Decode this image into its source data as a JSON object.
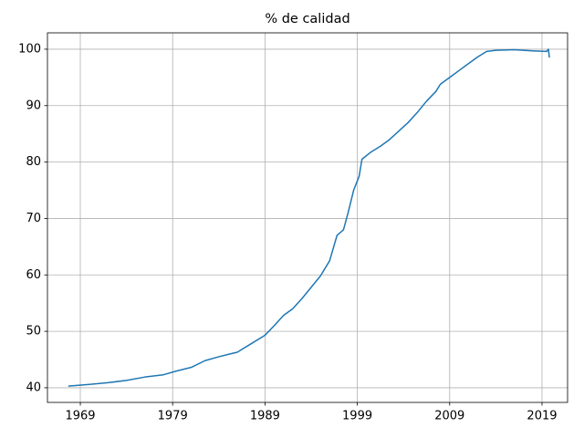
{
  "chart_data": {
    "type": "line",
    "title": "% de calidad",
    "x": [
      1967.7,
      1970,
      1972,
      1974,
      1976,
      1978,
      1979.5,
      1981,
      1982.5,
      1984,
      1986,
      1987.5,
      1989,
      1990,
      1991,
      1992,
      1993,
      1994,
      1995,
      1996,
      1996.8,
      1997.5,
      1998,
      1998.6,
      1999.2,
      1999.5,
      2000.5,
      2001.5,
      2002.5,
      2003.5,
      2004.5,
      2005.5,
      2006.5,
      2007.5,
      2008,
      2009,
      2010,
      2011,
      2012,
      2013,
      2014,
      2016,
      2018,
      2019.5,
      2019.7,
      2019.8
    ],
    "values": [
      40.3,
      40.6,
      40.9,
      41.3,
      41.9,
      42.3,
      43.0,
      43.6,
      44.8,
      45.5,
      46.3,
      47.8,
      49.3,
      51,
      52.8,
      54,
      55.8,
      57.8,
      59.8,
      62.5,
      67,
      68,
      71,
      75,
      77.5,
      80.5,
      81.8,
      82.8,
      84,
      85.5,
      87,
      88.8,
      90.8,
      92.5,
      93.8,
      95,
      96.2,
      97.4,
      98.6,
      99.6,
      99.8,
      99.9,
      99.7,
      99.6,
      100,
      98.5
    ],
    "color": "#1f77b4",
    "xlim": [
      1965.44,
      2021.77
    ],
    "xticks": [
      1969,
      1979,
      1989,
      1999,
      2009,
      2019
    ],
    "ylim": [
      37.4,
      102.9
    ],
    "yticks": [
      40,
      50,
      60,
      70,
      80,
      90,
      100
    ],
    "grid": true
  }
}
